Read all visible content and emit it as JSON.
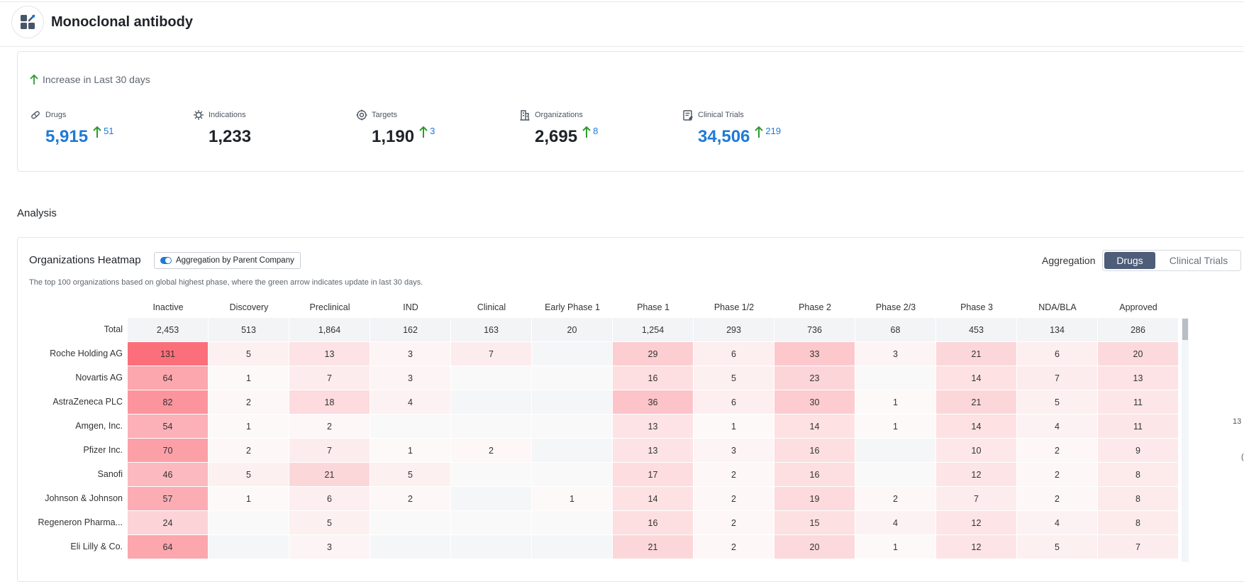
{
  "header": {
    "title": "Monoclonal antibody",
    "icon": "molecule-icon"
  },
  "stats": {
    "increase_label": "Increase in Last 30 days",
    "items": [
      {
        "label": "Drugs",
        "icon": "pill-icon",
        "value": "5,915",
        "delta": "51",
        "highlight": true
      },
      {
        "label": "Indications",
        "icon": "virus-icon",
        "value": "1,233",
        "delta": "",
        "highlight": false
      },
      {
        "label": "Targets",
        "icon": "target-icon",
        "value": "1,190",
        "delta": "3",
        "highlight": false
      },
      {
        "label": "Organizations",
        "icon": "building-icon",
        "value": "2,695",
        "delta": "8",
        "highlight": false
      },
      {
        "label": "Clinical Trials",
        "icon": "clipboard-icon",
        "value": "34,506",
        "delta": "219",
        "highlight": true
      }
    ]
  },
  "analysis": {
    "section_title": "Analysis",
    "heatmap_title": "Organizations Heatmap",
    "toggle_label": "Aggregation by Parent Company",
    "description": "The top 100 organizations based on global highest phase, where the green arrow indicates update in last 30 days.",
    "aggregation_label": "Aggregation",
    "aggregation_options": [
      "Drugs",
      "Clinical Trials"
    ],
    "aggregation_selected": "Drugs"
  },
  "heatmap": {
    "columns": [
      "Inactive",
      "Discovery",
      "Preclinical",
      "IND",
      "Clinical",
      "Early Phase 1",
      "Phase 1",
      "Phase 1/2",
      "Phase 2",
      "Phase 2/3",
      "Phase 3",
      "NDA/BLA",
      "Approved"
    ],
    "total_label": "Total",
    "totals": [
      "2,453",
      "513",
      "1,864",
      "162",
      "163",
      "20",
      "1,254",
      "293",
      "736",
      "68",
      "453",
      "134",
      "286"
    ],
    "rows": [
      {
        "name": "Roche Holding AG",
        "values": [
          "131",
          "5",
          "13",
          "3",
          "7",
          "",
          "29",
          "6",
          "33",
          "3",
          "21",
          "6",
          "20"
        ]
      },
      {
        "name": "Novartis AG",
        "values": [
          "64",
          "1",
          "7",
          "3",
          "",
          "",
          "16",
          "5",
          "23",
          "",
          "14",
          "7",
          "13"
        ]
      },
      {
        "name": "AstraZeneca PLC",
        "values": [
          "82",
          "2",
          "18",
          "4",
          "",
          "",
          "36",
          "6",
          "30",
          "1",
          "21",
          "5",
          "11"
        ]
      },
      {
        "name": "Amgen, Inc.",
        "values": [
          "54",
          "1",
          "2",
          "",
          "",
          "",
          "13",
          "1",
          "14",
          "1",
          "14",
          "4",
          "11"
        ]
      },
      {
        "name": "Pfizer Inc.",
        "values": [
          "70",
          "2",
          "7",
          "1",
          "2",
          "",
          "13",
          "3",
          "16",
          "",
          "10",
          "2",
          "9"
        ]
      },
      {
        "name": "Sanofi",
        "values": [
          "46",
          "5",
          "21",
          "5",
          "",
          "",
          "17",
          "2",
          "16",
          "",
          "12",
          "2",
          "8"
        ]
      },
      {
        "name": "Johnson & Johnson",
        "values": [
          "57",
          "1",
          "6",
          "2",
          "",
          "1",
          "14",
          "2",
          "19",
          "2",
          "7",
          "2",
          "8"
        ]
      },
      {
        "name": "Regeneron Pharma...",
        "values": [
          "24",
          "",
          "5",
          "",
          "",
          "",
          "16",
          "2",
          "15",
          "4",
          "12",
          "4",
          "8"
        ]
      },
      {
        "name": "Eli Lilly & Co.",
        "values": [
          "64",
          "",
          "3",
          "",
          "",
          "",
          "21",
          "2",
          "20",
          "1",
          "12",
          "5",
          "7"
        ]
      }
    ],
    "colors": {
      "total_bg": "#f3f4f6",
      "max": "#fb6f7b",
      "base": "#fdfdfd"
    }
  },
  "edge_text": [
    "13",
    "("
  ]
}
